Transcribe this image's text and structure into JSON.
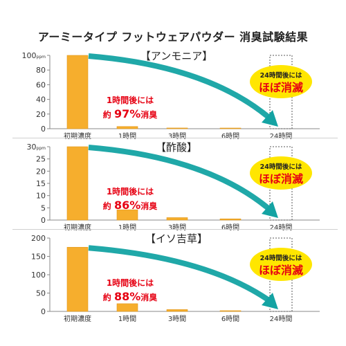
{
  "title": "アーミータイプ フットウェアパウダー 消臭試験結果",
  "chart_data": [
    {
      "type": "bar",
      "title": "【アンモニア】",
      "categories": [
        "初期濃度",
        "1時間",
        "3時間",
        "6時間",
        "24時間"
      ],
      "values": [
        100,
        3,
        1,
        0.5,
        0
      ],
      "ylim": [
        0,
        100
      ],
      "yticks": [
        "0",
        "20",
        "40",
        "60",
        "80",
        "100ppm"
      ],
      "ytick_values": [
        0,
        20,
        40,
        60,
        80,
        100
      ],
      "annotation_line1": "1時間後には",
      "annotation_prefix": "約",
      "annotation_percent": "97%",
      "annotation_suffix": "消臭",
      "badge_line1": "24時間後には",
      "badge_line2": "ほぼ消滅"
    },
    {
      "type": "bar",
      "title": "【酢酸】",
      "categories": [
        "初期濃度",
        "1時間",
        "3時間",
        "6時間",
        "24時間"
      ],
      "values": [
        30,
        4.2,
        1,
        0.5,
        0
      ],
      "ylim": [
        0,
        30
      ],
      "yticks": [
        "0",
        "5",
        "10",
        "15",
        "20",
        "25",
        "30ppm"
      ],
      "ytick_values": [
        0,
        5,
        10,
        15,
        20,
        25,
        30
      ],
      "annotation_line1": "1時間後には",
      "annotation_prefix": "約",
      "annotation_percent": "86%",
      "annotation_suffix": "消臭",
      "badge_line1": "24時間後には",
      "badge_line2": "ほぼ消滅"
    },
    {
      "type": "bar",
      "title": "【イソ吉草】",
      "categories": [
        "初期濃度",
        "1時間",
        "3時間",
        "6時間",
        "24時間"
      ],
      "values": [
        175,
        21,
        5,
        2,
        0
      ],
      "ylim": [
        0,
        200
      ],
      "yticks": [
        "0",
        "50",
        "100",
        "150",
        "200"
      ],
      "ytick_values": [
        0,
        50,
        100,
        150,
        200
      ],
      "annotation_line1": "1時間後には",
      "annotation_prefix": "約",
      "annotation_percent": "88%",
      "annotation_suffix": "消臭",
      "badge_line1": "24時間後には",
      "badge_line2": "ほぼ消滅"
    }
  ],
  "colors": {
    "bar": "#f6ae2d",
    "bar_border": "#e0961a",
    "arrow": "#14a3a3",
    "accent_red": "#e60012",
    "badge_fill": "#ffe600",
    "axis": "#888888"
  }
}
